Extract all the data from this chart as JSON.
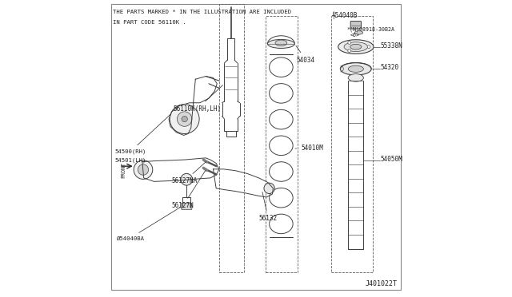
{
  "bg_color": "#ffffff",
  "line_color": "#404040",
  "text_color": "#202020",
  "header_text_line1": "THE PARTS MARKED * IN THE ILLUSTRATION ARE INCLUDED",
  "header_text_line2": "IN PART CODE 56110K .",
  "footer_text": "J401022T"
}
